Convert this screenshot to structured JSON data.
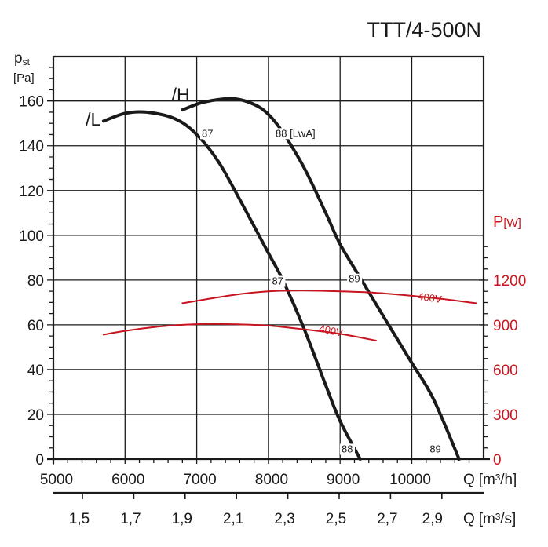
{
  "chart_data": {
    "type": "line",
    "title": "TTT/4-500N",
    "ylabel": "p_st [Pa]",
    "ylabel_main": "p",
    "ylabel_sub": "st",
    "ylabel_unit": "[Pa]",
    "y2label_main": "P",
    "y2label_unit": "[W]",
    "xlabel": "Q [m³/h]",
    "xlabel_main": "Q",
    "xlabel_unit": "[m³/h]",
    "x2label": "Q [m³/s]",
    "x2label_main": "Q",
    "x2label_unit": "[m³/s]",
    "xlim": [
      5000,
      11000
    ],
    "ylim": [
      0,
      180
    ],
    "y2lim": [
      0,
      1500
    ],
    "grid": true,
    "x_ticks": [
      5000,
      6000,
      7000,
      8000,
      9000,
      10000
    ],
    "x_tick_labels": [
      "5000",
      "6000",
      "7000",
      "8000",
      "9000",
      "10000"
    ],
    "y_ticks": [
      0,
      20,
      40,
      60,
      80,
      100,
      120,
      140,
      160
    ],
    "y_tick_labels": [
      "0",
      "20",
      "40",
      "60",
      "80",
      "100",
      "120",
      "140",
      "160"
    ],
    "y2_ticks": [
      0,
      300,
      600,
      900,
      1200
    ],
    "y2_tick_labels": [
      "0",
      "300",
      "600",
      "900",
      "1200"
    ],
    "x2_ticks": [
      1.5,
      1.7,
      1.9,
      2.1,
      2.3,
      2.5,
      2.7,
      2.9
    ],
    "x2_tick_labels": [
      "1,5",
      "1,7",
      "1,9",
      "2,1",
      "2,3",
      "2,5",
      "2,7",
      "2,9"
    ],
    "series": [
      {
        "name": "/L",
        "axis": "pressure",
        "color": "#1a1a1a",
        "x": [
          5700,
          6000,
          6300,
          6700,
          7000,
          7300,
          7600,
          8000,
          8200,
          8500,
          8800,
          9000,
          9280
        ],
        "y": [
          151,
          154.5,
          155,
          152,
          145,
          133,
          116,
          92,
          80,
          58,
          33,
          17,
          0
        ]
      },
      {
        "name": "/H",
        "axis": "pressure",
        "color": "#1a1a1a",
        "x": [
          6800,
          7100,
          7500,
          7800,
          8000,
          8200,
          8500,
          8800,
          9000,
          9300,
          9600,
          10000,
          10300,
          10660
        ],
        "y": [
          156,
          159.5,
          161,
          158.5,
          154,
          146,
          130,
          110,
          96,
          80,
          64,
          43,
          27,
          0
        ]
      },
      {
        "name": "400V (H)",
        "axis": "power",
        "color": "#c8141e",
        "x": [
          6800,
          7500,
          8000,
          8500,
          9000,
          9500,
          10000,
          10500,
          10900
        ],
        "y": [
          1045,
          1100,
          1125,
          1130,
          1125,
          1115,
          1095,
          1070,
          1045
        ]
      },
      {
        "name": "400V (L)",
        "axis": "power",
        "color": "#c8141e",
        "x": [
          5700,
          6000,
          6500,
          7000,
          7500,
          8000,
          8500,
          9000,
          9500
        ],
        "y": [
          835,
          860,
          890,
          905,
          905,
          895,
          870,
          840,
          795
        ]
      }
    ],
    "annotations": [
      {
        "text": "/L",
        "x": 5450,
        "y": 149,
        "kind": "curve-label"
      },
      {
        "text": "/H",
        "x": 6650,
        "y": 160,
        "kind": "curve-label"
      },
      {
        "text": "87",
        "x": 7070,
        "y": 144,
        "kind": "sound"
      },
      {
        "text": "88 [LwA]",
        "x": 8100,
        "y": 144,
        "kind": "sound"
      },
      {
        "text": "87",
        "x": 8050,
        "y": 78,
        "kind": "sound"
      },
      {
        "text": "89",
        "x": 9120,
        "y": 79,
        "kind": "sound"
      },
      {
        "text": "88",
        "x": 9020,
        "y": 3,
        "kind": "sound"
      },
      {
        "text": "89",
        "x": 10250,
        "y": 3,
        "kind": "sound"
      },
      {
        "text": "400V",
        "x": 10080,
        "y": 1070,
        "kind": "voltage",
        "axis": "power",
        "rotate": 8
      },
      {
        "text": "400V",
        "x": 8700,
        "y": 855,
        "kind": "voltage",
        "axis": "power",
        "rotate": 12
      }
    ]
  }
}
